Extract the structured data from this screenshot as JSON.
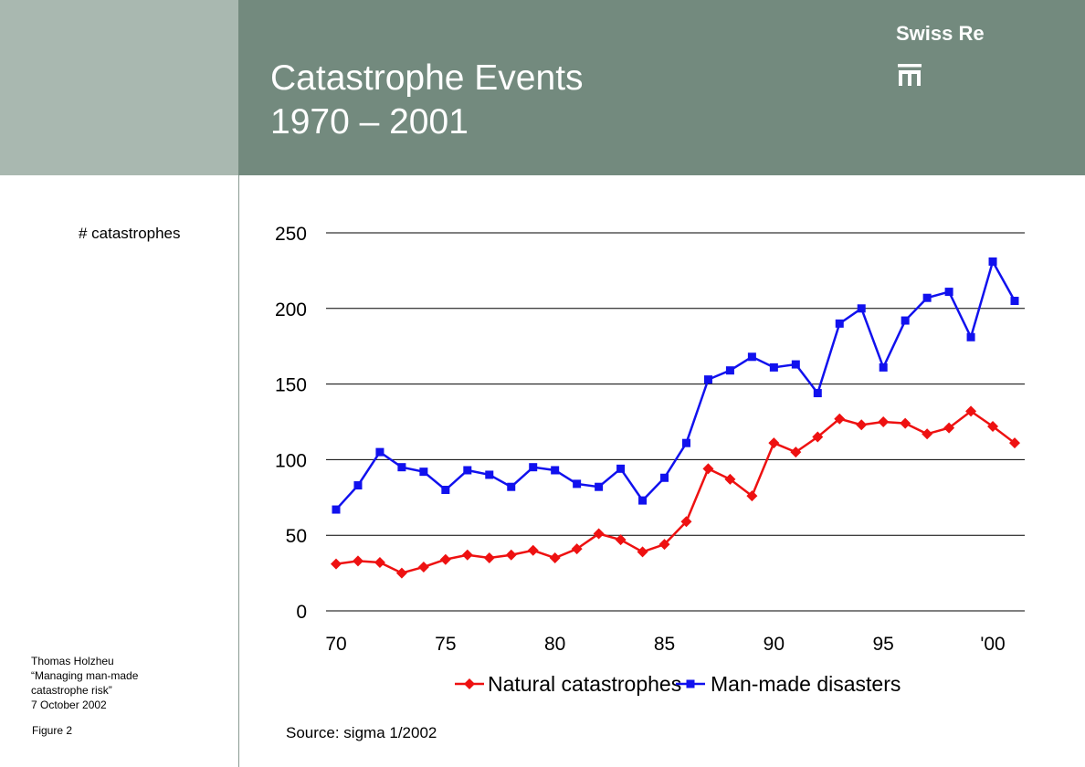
{
  "header": {
    "title_line1": "Catastrophe Events",
    "title_line2": "1970 – 2001",
    "logo_text": "Swiss Re",
    "logo_icon": "swiss-re-logo-mark"
  },
  "sidebar": {
    "y_axis_caption": "# catastrophes",
    "author": "Thomas Holzheu",
    "talk_title_line1": "“Managing man-made",
    "talk_title_line2": "catastrophe risk”",
    "date": "7 October 2002",
    "figure": "Figure 2"
  },
  "source": "Source: sigma 1/2002",
  "colors": {
    "header": "#738a7e",
    "header_left": "#a9b8b0",
    "natural": "#ee1111",
    "manmade": "#1111ee"
  },
  "chart_data": {
    "type": "line",
    "title": "",
    "xlabel": "",
    "ylabel": "# catastrophes",
    "x": [
      1970,
      1971,
      1972,
      1973,
      1974,
      1975,
      1976,
      1977,
      1978,
      1979,
      1980,
      1981,
      1982,
      1983,
      1984,
      1985,
      1986,
      1987,
      1988,
      1989,
      1990,
      1991,
      1992,
      1993,
      1994,
      1995,
      1996,
      1997,
      1998,
      1999,
      2000,
      2001
    ],
    "xlim": [
      1970,
      2001
    ],
    "ylim": [
      0,
      250
    ],
    "yticks": [
      0,
      50,
      100,
      150,
      200,
      250
    ],
    "xtick_values": [
      1970,
      1975,
      1980,
      1985,
      1990,
      1995,
      2000
    ],
    "xtick_labels": [
      "70",
      "75",
      "80",
      "85",
      "90",
      "95",
      "'00"
    ],
    "grid": true,
    "legend_position": "bottom",
    "series": [
      {
        "name": "Natural catastrophes",
        "color": "#ee1111",
        "marker": "diamond",
        "values": [
          31,
          33,
          32,
          25,
          29,
          34,
          37,
          35,
          37,
          40,
          35,
          41,
          51,
          47,
          39,
          44,
          59,
          94,
          87,
          76,
          111,
          105,
          115,
          127,
          123,
          125,
          124,
          117,
          121,
          132,
          122,
          111
        ]
      },
      {
        "name": "Man-made disasters",
        "color": "#1111ee",
        "marker": "square",
        "values": [
          67,
          83,
          105,
          95,
          92,
          80,
          93,
          90,
          82,
          95,
          93,
          84,
          82,
          94,
          73,
          88,
          111,
          153,
          159,
          168,
          161,
          163,
          144,
          190,
          200,
          161,
          192,
          207,
          211,
          181,
          231,
          205
        ]
      }
    ]
  }
}
